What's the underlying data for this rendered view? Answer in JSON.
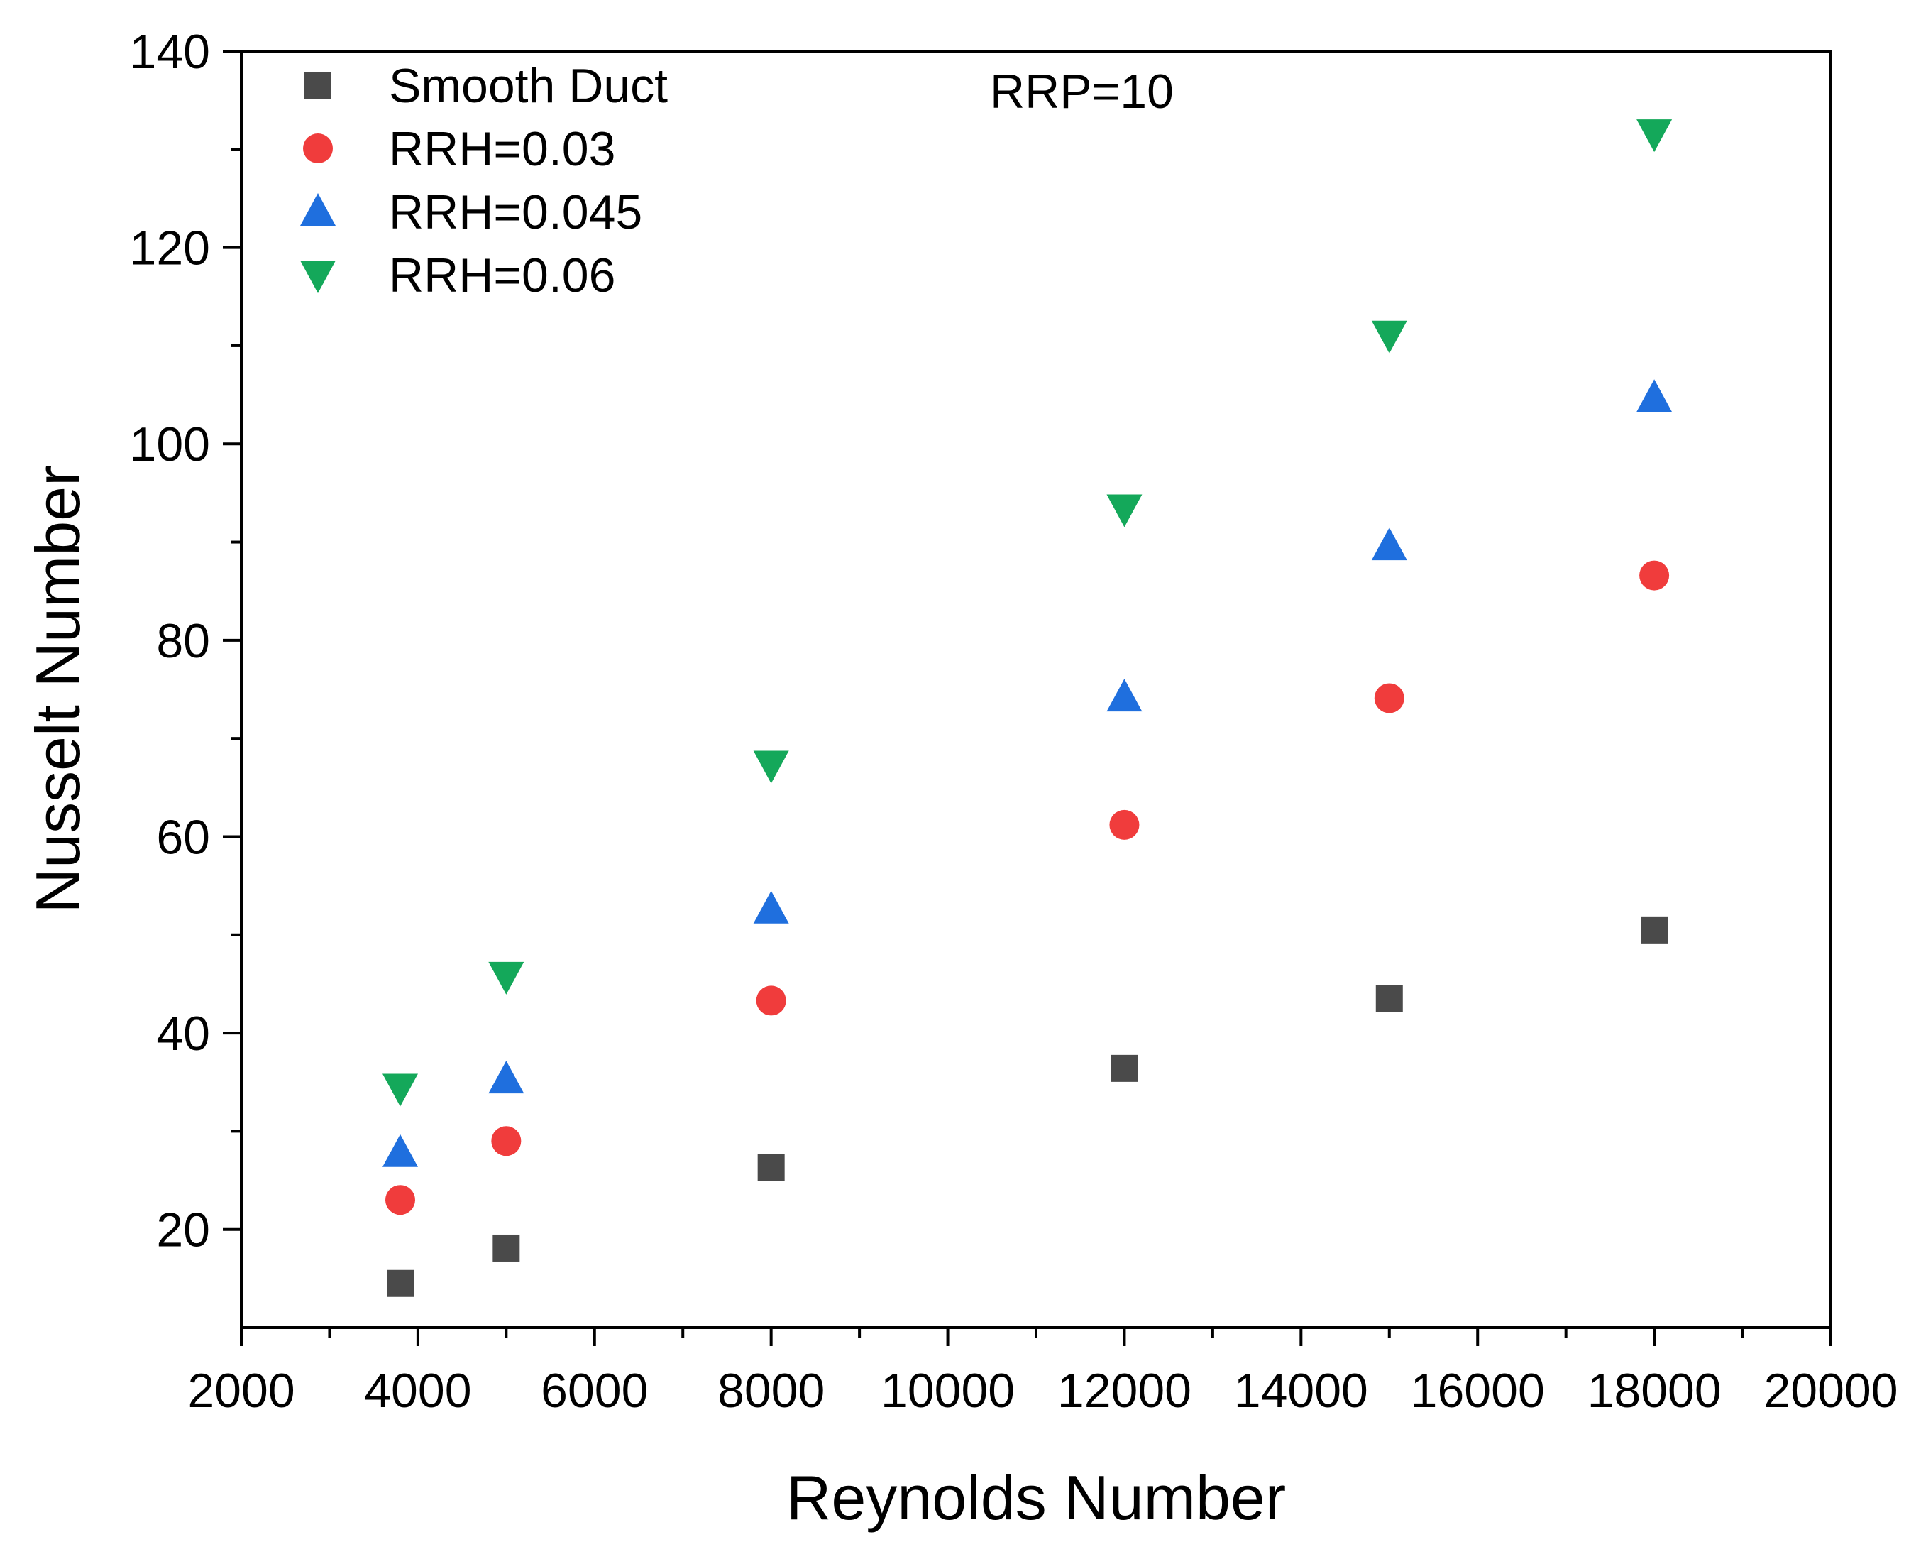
{
  "chart_data": {
    "type": "scatter",
    "title": "",
    "xlabel": "Reynolds Number",
    "ylabel": "Nusselt Number",
    "xlim": [
      2000,
      20000
    ],
    "ylim": [
      10,
      140
    ],
    "xticks": [
      2000,
      4000,
      6000,
      8000,
      10000,
      12000,
      14000,
      16000,
      18000,
      20000
    ],
    "yticks": [
      20,
      40,
      60,
      80,
      100,
      120,
      140
    ],
    "grid": false,
    "legend_position": "top-left",
    "annotation": "RRP=10",
    "x": [
      3800,
      5000,
      8000,
      12000,
      15000,
      18000
    ],
    "series": [
      {
        "name": "Smooth Duct",
        "marker": "square",
        "color": "#4a4a4a",
        "values": [
          14.5,
          18.1,
          26.3,
          36.4,
          43.5,
          50.5
        ]
      },
      {
        "name": "RRH=0.03",
        "marker": "circle",
        "color": "#f03c3c",
        "values": [
          23.0,
          29.0,
          43.3,
          61.2,
          74.1,
          86.6
        ]
      },
      {
        "name": "RRH=0.045",
        "marker": "triangle-up",
        "color": "#1f6fde",
        "values": [
          27.8,
          35.3,
          52.6,
          74.2,
          89.6,
          104.7
        ]
      },
      {
        "name": "RRH=0.06",
        "marker": "triangle-down",
        "color": "#14a85a",
        "values": [
          34.4,
          45.8,
          67.3,
          93.4,
          111.1,
          131.6
        ]
      }
    ]
  }
}
